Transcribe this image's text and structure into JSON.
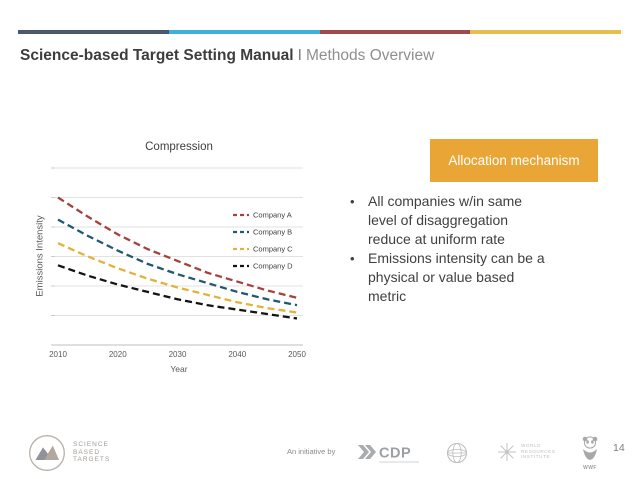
{
  "header": {
    "bar_colors": [
      "#4a5a6c",
      "#3fb1d8",
      "#9f4a51",
      "#e5bf4c"
    ],
    "title_bold": "Science-based Target Setting Manual",
    "separator": "I",
    "title_light": "Methods Overview"
  },
  "chart_data": {
    "type": "line",
    "title": "Compression",
    "xlabel": "Year",
    "ylabel": "Emissions Intensity",
    "x": [
      2010,
      2015,
      2020,
      2025,
      2030,
      2035,
      2040,
      2045,
      2050
    ],
    "x_ticks": [
      "2010",
      "2020",
      "2030",
      "2040",
      "2050"
    ],
    "ylim": [
      0,
      1.2
    ],
    "y_gridline_step": 0.2,
    "y_tick_labels_visible": false,
    "grid": true,
    "line_style": "dashed",
    "legend_position": "inside-right",
    "series": [
      {
        "name": "Company A",
        "color": "#A6413C",
        "values": [
          1.0,
          0.87,
          0.75,
          0.65,
          0.57,
          0.49,
          0.43,
          0.37,
          0.32
        ]
      },
      {
        "name": "Company B",
        "color": "#20596F",
        "values": [
          0.85,
          0.74,
          0.64,
          0.55,
          0.48,
          0.42,
          0.36,
          0.31,
          0.27
        ]
      },
      {
        "name": "Company C",
        "color": "#E3B23B",
        "values": [
          0.69,
          0.6,
          0.52,
          0.45,
          0.39,
          0.34,
          0.29,
          0.25,
          0.22
        ]
      },
      {
        "name": "Company D",
        "color": "#141414",
        "values": [
          0.54,
          0.47,
          0.41,
          0.36,
          0.31,
          0.27,
          0.24,
          0.21,
          0.18
        ]
      }
    ]
  },
  "panel": {
    "box_label": "Allocation mechanism",
    "box_color": "#E9A637",
    "bullets": [
      {
        "lines": [
          "All companies w/in same",
          "level of disaggregation",
          "reduce at uniform rate"
        ]
      },
      {
        "lines": [
          "Emissions intensity can be a",
          "physical or value based",
          "metric"
        ]
      }
    ]
  },
  "footer": {
    "sbt_lines": [
      "SCIENCE",
      "BASED",
      "TARGETS"
    ],
    "initiative_text": "An initiative by",
    "cdp_label": "CDP",
    "wri_lines": [
      "WORLD",
      "RESOURCES",
      "INSTITUTE"
    ],
    "wwf_label": "WWF",
    "page_number": "14"
  }
}
